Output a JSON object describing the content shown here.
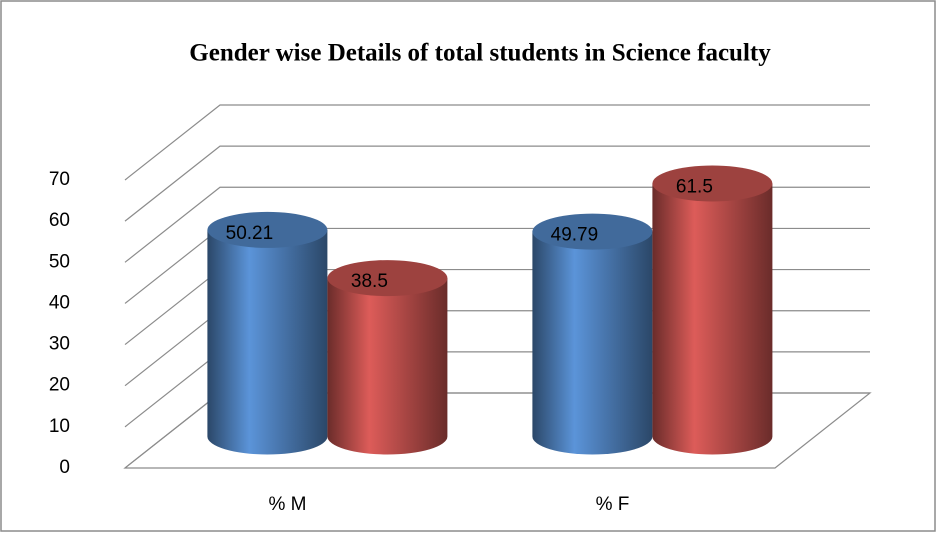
{
  "chart_data": {
    "type": "bar3d",
    "title": "Gender wise Details of total students in Science faculty",
    "categories": [
      "% M",
      "% F"
    ],
    "series": [
      {
        "color": "#4f81bd",
        "values": [
          50.21,
          49.79
        ]
      },
      {
        "color": "#c0504d",
        "values": [
          38.5,
          61.5
        ]
      }
    ],
    "ylim": [
      0,
      70
    ],
    "yticks": [
      0,
      10,
      20,
      30,
      40,
      50,
      60,
      70
    ],
    "grid": true
  }
}
